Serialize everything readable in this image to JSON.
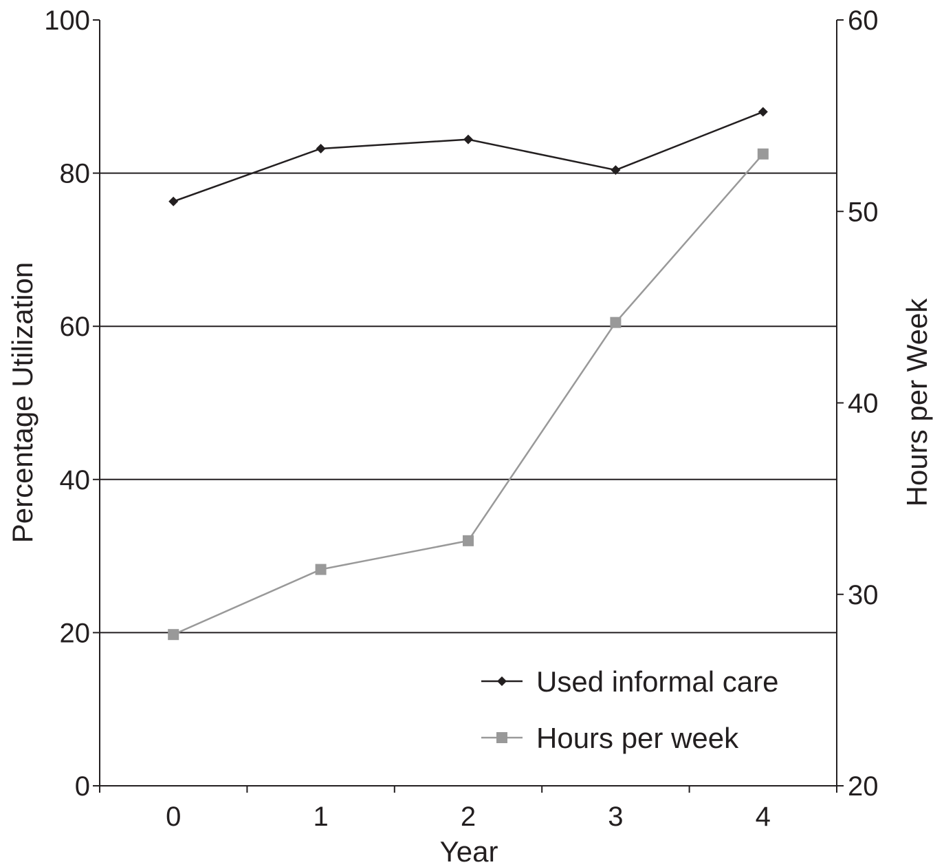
{
  "chart_data": {
    "type": "line",
    "xlabel": "Year",
    "ylabel_left": "Percentage Utilization",
    "ylabel_right": "Hours per Week",
    "categories": [
      "0",
      "1",
      "2",
      "3",
      "4"
    ],
    "x": [
      0,
      1,
      2,
      3,
      4
    ],
    "ylim_left": [
      0,
      100
    ],
    "yticks_left": [
      "0",
      "20",
      "40",
      "60",
      "80",
      "100"
    ],
    "ylim_right": [
      20,
      60
    ],
    "yticks_right": [
      "20",
      "30",
      "40",
      "50",
      "60"
    ],
    "grid": "horizontal lines at left-axis ticks",
    "legend_position": "bottom-right",
    "series": [
      {
        "name": "Used informal care",
        "axis": "left",
        "marker": "diamond",
        "color": "#231f20",
        "values": [
          76.3,
          83.2,
          84.4,
          80.4,
          88.0
        ]
      },
      {
        "name": "Hours per week",
        "axis": "right",
        "marker": "square",
        "color": "#999999",
        "values": [
          27.9,
          31.3,
          32.8,
          44.2,
          53.0
        ]
      }
    ]
  }
}
